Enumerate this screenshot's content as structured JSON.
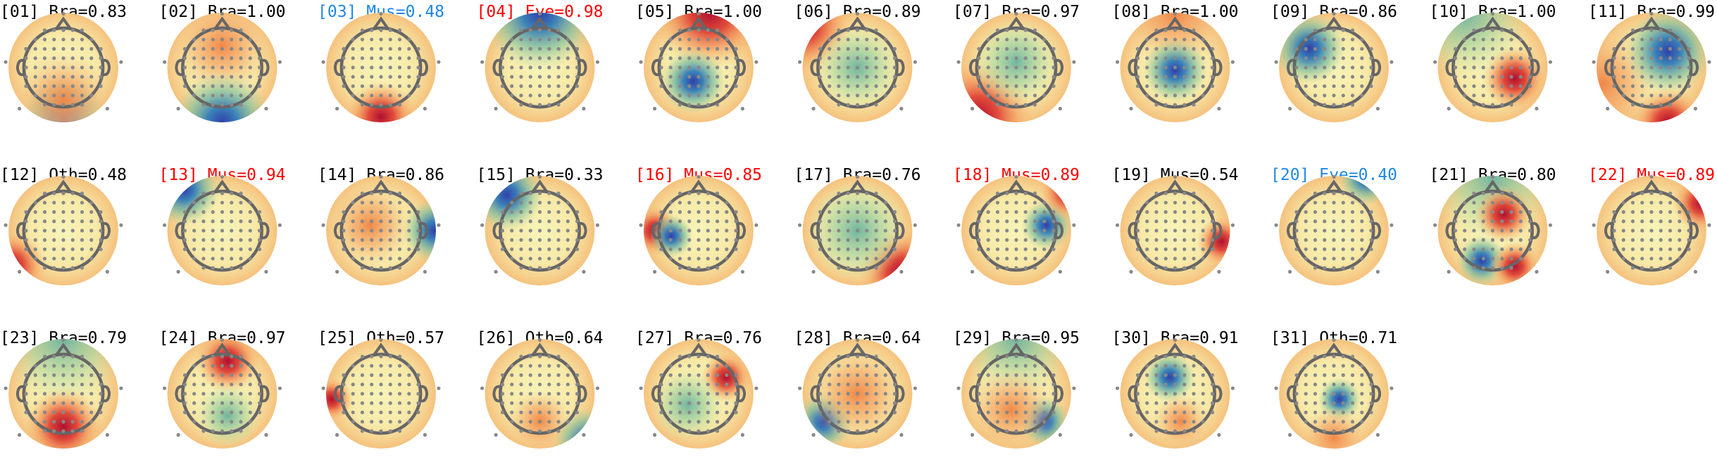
{
  "components": [
    {
      "label": "[01] Bra=0.83",
      "color": "#000000"
    },
    {
      "label": "[02] Bra=1.00",
      "color": "#000000"
    },
    {
      "label": "[03] Mus=0.48",
      "color": "#1e88e5"
    },
    {
      "label": "[04] Eye=0.98",
      "color": "#ff0000"
    },
    {
      "label": "[05] Bra=1.00",
      "color": "#000000"
    },
    {
      "label": "[06] Bra=0.89",
      "color": "#000000"
    },
    {
      "label": "[07] Bra=0.97",
      "color": "#000000"
    },
    {
      "label": "[08] Bra=1.00",
      "color": "#000000"
    },
    {
      "label": "[09] Bra=0.86",
      "color": "#000000"
    },
    {
      "label": "[10] Bra=1.00",
      "color": "#000000"
    },
    {
      "label": "[11] Bra=0.99",
      "color": "#000000"
    },
    {
      "label": "[12] Oth=0.48",
      "color": "#000000"
    },
    {
      "label": "[13] Mus=0.94",
      "color": "#ff0000"
    },
    {
      "label": "[14] Bra=0.86",
      "color": "#000000"
    },
    {
      "label": "[15] Bra=0.33",
      "color": "#000000"
    },
    {
      "label": "[16] Mus=0.85",
      "color": "#ff0000"
    },
    {
      "label": "[17] Bra=0.76",
      "color": "#000000"
    },
    {
      "label": "[18] Mus=0.89",
      "color": "#ff0000"
    },
    {
      "label": "[19] Mus=0.54",
      "color": "#000000"
    },
    {
      "label": "[20] Eye=0.40",
      "color": "#1e88e5"
    },
    {
      "label": "[21] Bra=0.80",
      "color": "#000000"
    },
    {
      "label": "[22] Mus=0.89",
      "color": "#ff0000"
    },
    {
      "label": "[23] Bra=0.79",
      "color": "#000000"
    },
    {
      "label": "[24] Bra=0.97",
      "color": "#000000"
    },
    {
      "label": "[25] Oth=0.57",
      "color": "#000000"
    },
    {
      "label": "[26] Oth=0.64",
      "color": "#000000"
    },
    {
      "label": "[27] Bra=0.76",
      "color": "#000000"
    },
    {
      "label": "[28] Bra=0.64",
      "color": "#000000"
    },
    {
      "label": "[29] Bra=0.95",
      "color": "#000000"
    },
    {
      "label": "[30] Bra=0.91",
      "color": "#000000"
    },
    {
      "label": "[31] Oth=0.71",
      "color": "#000000"
    }
  ]
}
